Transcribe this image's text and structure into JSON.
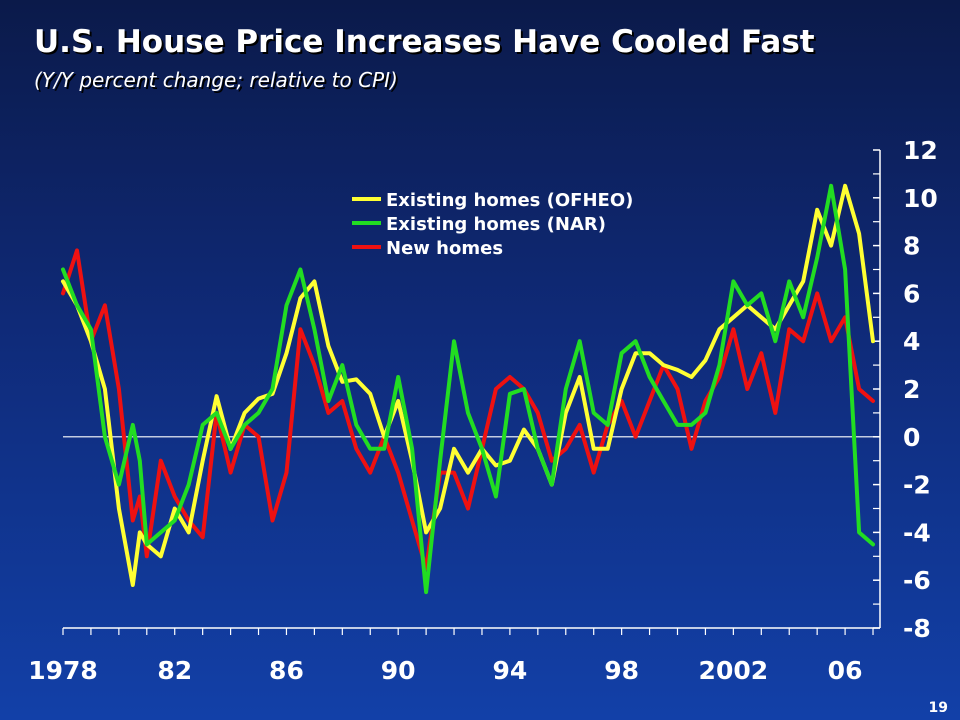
{
  "header": {
    "title": "U.S. House Price Increases Have Cooled Fast",
    "subtitle": "(Y/Y percent change; relative to CPI)"
  },
  "footer": {
    "page_number": "19"
  },
  "colors": {
    "background": "#12308f",
    "ofheo": "#ffff33",
    "nar": "#22dd22",
    "new_homes": "#ee1111",
    "axis": "#ffffff"
  },
  "chart_data": {
    "type": "line",
    "title": "U.S. House Price Increases Have Cooled Fast",
    "subtitle": "(Y/Y percent change; relative to CPI)",
    "xlabel": "",
    "ylabel": "",
    "x_tick_labels": [
      "1978",
      "82",
      "86",
      "90",
      "94",
      "98",
      "2002",
      "06"
    ],
    "x_tick_years": [
      1978,
      1982,
      1986,
      1990,
      1994,
      1998,
      2002,
      2006
    ],
    "xlim": [
      1978,
      2007.25
    ],
    "ylim": [
      -8,
      12
    ],
    "y_ticks": [
      -8,
      -6,
      -4,
      -2,
      0,
      2,
      4,
      6,
      8,
      10,
      12
    ],
    "y_axis_side": "right",
    "zero_line": true,
    "grid": false,
    "legend_position": "top-center",
    "series": [
      {
        "name": "Existing homes (OFHEO)",
        "color": "#ffff33",
        "x": [
          1978.0,
          1978.5,
          1979.0,
          1979.5,
          1980.0,
          1980.5,
          1980.75,
          1981.0,
          1981.5,
          1982.0,
          1982.5,
          1983.0,
          1983.5,
          1984.0,
          1984.5,
          1985.0,
          1985.5,
          1986.0,
          1986.5,
          1987.0,
          1987.5,
          1988.0,
          1988.5,
          1989.0,
          1989.5,
          1990.0,
          1990.5,
          1991.0,
          1991.5,
          1992.0,
          1992.5,
          1993.0,
          1993.5,
          1994.0,
          1994.5,
          1995.0,
          1995.5,
          1996.0,
          1996.5,
          1997.0,
          1997.5,
          1998.0,
          1998.5,
          1999.0,
          1999.5,
          2000.0,
          2000.5,
          2001.0,
          2001.5,
          2002.0,
          2002.5,
          2003.0,
          2003.5,
          2004.0,
          2004.5,
          2005.0,
          2005.5,
          2006.0,
          2006.5,
          2007.0
        ],
        "values": [
          6.5,
          5.5,
          4.0,
          2.0,
          -3.0,
          -6.2,
          -4.0,
          -4.5,
          -5.0,
          -3.0,
          -4.0,
          -1.0,
          1.7,
          -0.5,
          1.0,
          1.6,
          1.8,
          3.5,
          5.8,
          6.5,
          3.8,
          2.3,
          2.4,
          1.8,
          0.0,
          1.5,
          -1.0,
          -4.0,
          -3.0,
          -0.5,
          -1.5,
          -0.5,
          -1.2,
          -1.0,
          0.3,
          -0.5,
          -2.0,
          1.0,
          2.5,
          -0.5,
          -0.5,
          2.0,
          3.5,
          3.5,
          3.0,
          2.8,
          2.5,
          3.2,
          4.5,
          5.0,
          5.5,
          5.0,
          4.5,
          5.5,
          6.5,
          9.5,
          8.0,
          10.5,
          8.5,
          4.0
        ]
      },
      {
        "name": "Existing homes (NAR)",
        "color": "#22dd22",
        "x": [
          1978.0,
          1978.5,
          1979.0,
          1979.5,
          1980.0,
          1980.5,
          1980.75,
          1981.0,
          1981.5,
          1982.0,
          1982.5,
          1983.0,
          1983.5,
          1984.0,
          1984.5,
          1985.0,
          1985.5,
          1986.0,
          1986.5,
          1987.0,
          1987.5,
          1988.0,
          1988.5,
          1989.0,
          1989.5,
          1990.0,
          1990.5,
          1991.0,
          1991.5,
          1992.0,
          1992.5,
          1993.0,
          1993.5,
          1994.0,
          1994.5,
          1995.0,
          1995.5,
          1996.0,
          1996.5,
          1997.0,
          1997.5,
          1998.0,
          1998.5,
          1999.0,
          1999.5,
          2000.0,
          2000.5,
          2001.0,
          2001.5,
          2002.0,
          2002.5,
          2003.0,
          2003.5,
          2004.0,
          2004.5,
          2005.0,
          2005.5,
          2006.0,
          2006.5,
          2007.0
        ],
        "values": [
          7.0,
          5.5,
          4.5,
          0.0,
          -2.0,
          0.5,
          -1.0,
          -4.5,
          -4.0,
          -3.5,
          -2.0,
          0.5,
          1.0,
          -0.5,
          0.5,
          1.0,
          2.0,
          5.5,
          7.0,
          4.5,
          1.5,
          3.0,
          0.5,
          -0.5,
          -0.5,
          2.5,
          -0.5,
          -6.5,
          -1.0,
          4.0,
          1.0,
          -0.5,
          -2.5,
          1.8,
          2.0,
          -0.5,
          -2.0,
          2.0,
          4.0,
          1.0,
          0.5,
          3.5,
          4.0,
          2.5,
          1.5,
          0.5,
          0.5,
          1.0,
          3.0,
          6.5,
          5.5,
          6.0,
          4.0,
          6.5,
          5.0,
          7.5,
          10.5,
          7.0,
          -4.0,
          -4.5
        ]
      },
      {
        "name": "New homes",
        "color": "#ee1111",
        "x": [
          1978.0,
          1978.5,
          1979.0,
          1979.5,
          1980.0,
          1980.5,
          1980.75,
          1981.0,
          1981.5,
          1982.0,
          1982.5,
          1983.0,
          1983.5,
          1984.0,
          1984.5,
          1985.0,
          1985.5,
          1986.0,
          1986.5,
          1987.0,
          1987.5,
          1988.0,
          1988.5,
          1989.0,
          1989.5,
          1990.0,
          1990.5,
          1991.0,
          1991.5,
          1992.0,
          1992.5,
          1993.0,
          1993.5,
          1994.0,
          1994.5,
          1995.0,
          1995.5,
          1996.0,
          1996.5,
          1997.0,
          1997.5,
          1998.0,
          1998.5,
          1999.0,
          1999.5,
          2000.0,
          2000.5,
          2001.0,
          2001.5,
          2002.0,
          2002.5,
          2003.0,
          2003.5,
          2004.0,
          2004.5,
          2005.0,
          2005.5,
          2006.0,
          2006.5,
          2007.0
        ],
        "values": [
          6.0,
          7.8,
          4.0,
          5.5,
          2.0,
          -3.5,
          -2.5,
          -5.0,
          -1.0,
          -2.5,
          -3.5,
          -4.2,
          1.0,
          -1.5,
          0.5,
          0.0,
          -3.5,
          -1.5,
          4.5,
          3.0,
          1.0,
          1.5,
          -0.5,
          -1.5,
          0.0,
          -1.5,
          -3.5,
          -5.5,
          -1.5,
          -1.5,
          -3.0,
          -0.5,
          2.0,
          2.5,
          2.0,
          1.0,
          -1.0,
          -0.5,
          0.5,
          -1.5,
          0.5,
          1.5,
          0.0,
          1.5,
          3.0,
          2.0,
          -0.5,
          1.5,
          2.5,
          4.5,
          2.0,
          3.5,
          1.0,
          4.5,
          4.0,
          6.0,
          4.0,
          5.0,
          2.0,
          1.5
        ]
      }
    ]
  }
}
